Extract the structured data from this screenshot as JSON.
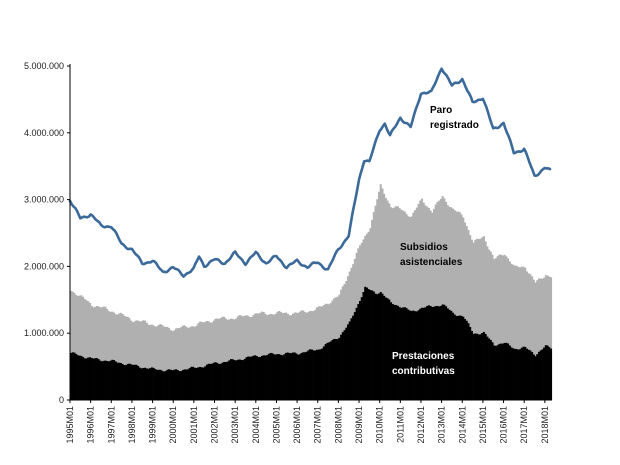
{
  "chart_data": {
    "type": "area",
    "title": "",
    "xlabel": "",
    "ylabel": "",
    "ylim": [
      0,
      5000000
    ],
    "y_ticks": [
      {
        "value": 0,
        "label": "0"
      },
      {
        "value": 1000000,
        "label": "1.000.000"
      },
      {
        "value": 2000000,
        "label": "2.000.000"
      },
      {
        "value": 3000000,
        "label": "3.000.000"
      },
      {
        "value": 4000000,
        "label": "4.000.000"
      },
      {
        "value": 5000000,
        "label": "5.000.000"
      }
    ],
    "x_ticks": [
      "1995M01",
      "1996M01",
      "1997M01",
      "1998M01",
      "1999M01",
      "2000M01",
      "2001M01",
      "2002M01",
      "2003M01",
      "2004M01",
      "2005M01",
      "2006M01",
      "2007M01",
      "2008M01",
      "2009M01",
      "2010M01",
      "2011M01",
      "2012M01",
      "2013M01",
      "2014M01",
      "2015M01",
      "2016M01",
      "2017M01",
      "2018M01"
    ],
    "x_range": [
      "1995M01",
      "2018M04"
    ],
    "grid": false,
    "legend": "none",
    "series": [
      {
        "name": "Paro registrado",
        "kind": "line",
        "color": "#3b6a9a",
        "start": "1995M01",
        "points": [
          [
            "1995M01",
            2990000
          ],
          [
            "1995M07",
            2720000
          ],
          [
            "1996M01",
            2780000
          ],
          [
            "1996M07",
            2610000
          ],
          [
            "1997M01",
            2600000
          ],
          [
            "1997M07",
            2340000
          ],
          [
            "1998M01",
            2250000
          ],
          [
            "1998M07",
            2050000
          ],
          [
            "1999M01",
            2080000
          ],
          [
            "1999M07",
            1920000
          ],
          [
            "2000M01",
            1980000
          ],
          [
            "2000M07",
            1870000
          ],
          [
            "2001M01",
            1960000
          ],
          [
            "2001M04",
            2150000
          ],
          [
            "2001M07",
            2010000
          ],
          [
            "2002M01",
            2100000
          ],
          [
            "2002M07",
            2050000
          ],
          [
            "2003M01",
            2200000
          ],
          [
            "2003M07",
            2050000
          ],
          [
            "2004M01",
            2200000
          ],
          [
            "2004M07",
            2050000
          ],
          [
            "2005M01",
            2150000
          ],
          [
            "2005M07",
            1990000
          ],
          [
            "2006M01",
            2080000
          ],
          [
            "2006M07",
            1990000
          ],
          [
            "2007M01",
            2060000
          ],
          [
            "2007M07",
            1950000
          ],
          [
            "2008M01",
            2260000
          ],
          [
            "2008M07",
            2460000
          ],
          [
            "2009M01",
            3300000
          ],
          [
            "2009M04",
            3600000
          ],
          [
            "2009M07",
            3560000
          ],
          [
            "2010M01",
            4050000
          ],
          [
            "2010M04",
            4140000
          ],
          [
            "2010M07",
            3950000
          ],
          [
            "2011M01",
            4230000
          ],
          [
            "2011M07",
            4080000
          ],
          [
            "2012M01",
            4600000
          ],
          [
            "2012M07",
            4600000
          ],
          [
            "2013M01",
            4980000
          ],
          [
            "2013M07",
            4700000
          ],
          [
            "2014M01",
            4810000
          ],
          [
            "2014M07",
            4450000
          ],
          [
            "2015M01",
            4530000
          ],
          [
            "2015M07",
            4050000
          ],
          [
            "2016M01",
            4150000
          ],
          [
            "2016M07",
            3700000
          ],
          [
            "2017M01",
            3760000
          ],
          [
            "2017M07",
            3350000
          ],
          [
            "2018M01",
            3480000
          ],
          [
            "2018M04",
            3430000
          ]
        ]
      },
      {
        "name": "Subsidios asistenciales",
        "kind": "area",
        "color": "#b0b0b0",
        "points": [
          [
            "1995M01",
            1650000
          ],
          [
            "1996M01",
            1430000
          ],
          [
            "1997M01",
            1330000
          ],
          [
            "1998M01",
            1200000
          ],
          [
            "1999M01",
            1130000
          ],
          [
            "2000M01",
            1060000
          ],
          [
            "2001M01",
            1120000
          ],
          [
            "2002M01",
            1210000
          ],
          [
            "2003M01",
            1230000
          ],
          [
            "2004M01",
            1290000
          ],
          [
            "2005M01",
            1300000
          ],
          [
            "2006M01",
            1300000
          ],
          [
            "2007M01",
            1370000
          ],
          [
            "2008M01",
            1560000
          ],
          [
            "2009M01",
            2300000
          ],
          [
            "2009M07",
            2600000
          ],
          [
            "2010M01",
            3200000
          ],
          [
            "2010M07",
            2900000
          ],
          [
            "2011M01",
            2850000
          ],
          [
            "2011M07",
            2750000
          ],
          [
            "2012M01",
            3000000
          ],
          [
            "2012M07",
            2820000
          ],
          [
            "2013M01",
            3050000
          ],
          [
            "2013M07",
            2850000
          ],
          [
            "2014M01",
            2750000
          ],
          [
            "2014M07",
            2350000
          ],
          [
            "2015M01",
            2450000
          ],
          [
            "2015M07",
            2100000
          ],
          [
            "2016M01",
            2200000
          ],
          [
            "2016M07",
            1980000
          ],
          [
            "2017M01",
            2000000
          ],
          [
            "2017M07",
            1750000
          ],
          [
            "2018M01",
            1880000
          ],
          [
            "2018M04",
            1850000
          ]
        ]
      },
      {
        "name": "Prestaciones contributivas",
        "kind": "area",
        "color": "#000000",
        "points": [
          [
            "1995M01",
            700000
          ],
          [
            "1996M01",
            620000
          ],
          [
            "1997M01",
            580000
          ],
          [
            "1998M01",
            520000
          ],
          [
            "1999M01",
            460000
          ],
          [
            "2000M01",
            440000
          ],
          [
            "2001M01",
            480000
          ],
          [
            "2002M01",
            550000
          ],
          [
            "2003M01",
            600000
          ],
          [
            "2004M01",
            660000
          ],
          [
            "2005M01",
            690000
          ],
          [
            "2006M01",
            700000
          ],
          [
            "2007M01",
            760000
          ],
          [
            "2008M01",
            950000
          ],
          [
            "2008M07",
            1150000
          ],
          [
            "2009M01",
            1500000
          ],
          [
            "2009M04",
            1680000
          ],
          [
            "2009M10",
            1600000
          ],
          [
            "2010M01",
            1620000
          ],
          [
            "2010M07",
            1450000
          ],
          [
            "2011M01",
            1400000
          ],
          [
            "2011M07",
            1320000
          ],
          [
            "2012M01",
            1380000
          ],
          [
            "2012M07",
            1400000
          ],
          [
            "2013M01",
            1430000
          ],
          [
            "2013M07",
            1300000
          ],
          [
            "2014M01",
            1250000
          ],
          [
            "2014M07",
            1000000
          ],
          [
            "2015M01",
            1000000
          ],
          [
            "2015M07",
            830000
          ],
          [
            "2016M01",
            850000
          ],
          [
            "2016M07",
            770000
          ],
          [
            "2017M01",
            780000
          ],
          [
            "2017M07",
            680000
          ],
          [
            "2018M01",
            800000
          ],
          [
            "2018M04",
            780000
          ]
        ]
      }
    ],
    "annotations": [
      {
        "lines": [
          "Paro",
          "registrado"
        ],
        "color": "#000000",
        "anchor": "Paro registrado"
      },
      {
        "lines": [
          "Subsidios",
          "asistenciales"
        ],
        "color": "#000000",
        "anchor": "Subsidios asistenciales"
      },
      {
        "lines": [
          "Prestaciones",
          "contributivas"
        ],
        "color": "#ffffff",
        "anchor": "Prestaciones contributivas"
      }
    ]
  }
}
